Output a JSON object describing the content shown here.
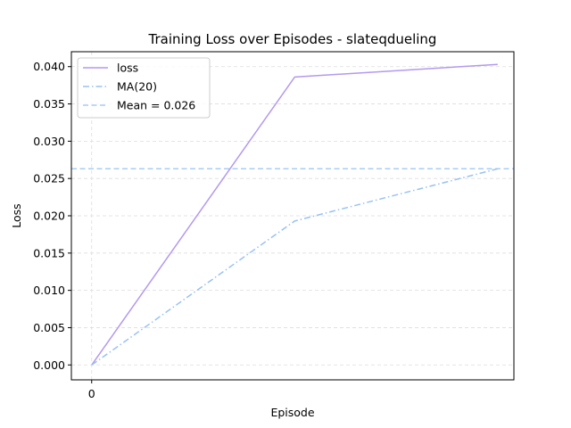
{
  "chart_data": {
    "type": "line",
    "title": "Training Loss over Episodes - slateqdueling",
    "xlabel": "Episode",
    "ylabel": "Loss",
    "x": [
      0,
      1,
      2
    ],
    "xticks": [
      0
    ],
    "xtick_labels": [
      "0"
    ],
    "xlim": [
      -0.1,
      2.08
    ],
    "ylim": [
      -0.002,
      0.042
    ],
    "yticks": [
      0.0,
      0.005,
      0.01,
      0.015,
      0.02,
      0.025,
      0.03,
      0.035,
      0.04
    ],
    "ytick_labels": [
      "0.000",
      "0.005",
      "0.010",
      "0.015",
      "0.020",
      "0.025",
      "0.030",
      "0.035",
      "0.040"
    ],
    "grid": true,
    "legend_position": "top-left",
    "series": [
      {
        "name": "loss",
        "values": [
          0.0,
          0.0386,
          0.0403
        ],
        "color": "#b399f0",
        "style": "solid"
      },
      {
        "name": "MA(20)",
        "values": [
          0.0,
          0.0193,
          0.0263
        ],
        "color": "#99c2f2",
        "style": "dashdot"
      }
    ],
    "hlines": [
      {
        "name": "Mean = 0.026",
        "value": 0.0263,
        "color": "#a8ccf5",
        "style": "dashed"
      }
    ]
  }
}
